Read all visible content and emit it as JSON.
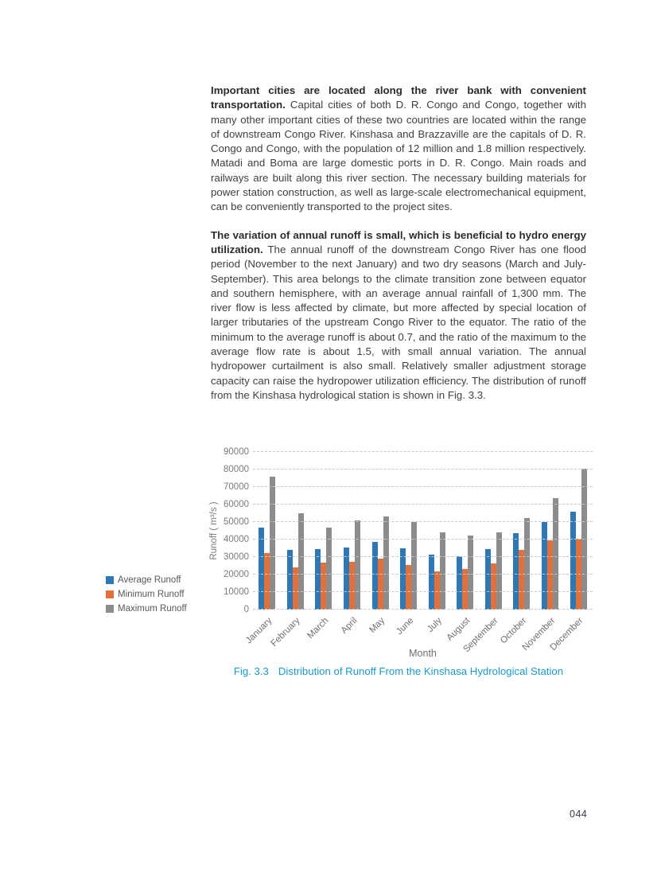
{
  "page": {
    "number": "044"
  },
  "paragraphs": [
    {
      "lead": "Important cities are located along the river bank with convenient transportation.",
      "body": " Capital cities of both D. R. Congo and Congo, together with many other important cities of these two countries are located within the range of downstream Congo River. Kinshasa and Brazzaville are the capitals of D. R. Congo and Congo, with the population of 12 million and 1.8 million respectively. Matadi and Boma are large domestic ports in D. R. Congo. Main roads and railways are built along this river section. The necessary building materials for power station construction, as well as large-scale electromechanical equipment, can be conveniently transported to the project sites."
    },
    {
      "lead": "The variation of annual runoff is small, which is beneficial to hydro energy utilization.",
      "body": " The annual runoff of the downstream Congo River has one flood period (November to the next January) and two dry seasons (March and July-September). This area belongs to the climate transition zone between equator and southern hemisphere, with an average annual rainfall of 1,300 mm. The river flow is less affected by climate, but more affected by special location of larger tributaries of the upstream Congo River to the equator. The ratio of the minimum to the average runoff is about 0.7, and the ratio of the maximum to the average flow rate is about 1.5, with small annual variation. The annual hydropower curtailment is also small. Relatively smaller adjustment storage capacity can raise the hydropower utilization efficiency. The distribution of runoff from the Kinshasa hydrological station is shown in Fig. 3.3."
    }
  ],
  "figure": {
    "caption_label": "Fig. 3.3",
    "caption_text": "Distribution of Runoff From the Kinshasa Hydrological Station",
    "caption_color": "#1a9bc7"
  },
  "chart_data": {
    "type": "bar",
    "title": "",
    "xlabel": "Month",
    "ylabel": "Runoff ( m³/s )",
    "ylim": [
      0,
      90000
    ],
    "ytick_step": 10000,
    "grid": true,
    "gridline_style": "dashed",
    "legend_position": "left",
    "categories": [
      "January",
      "February",
      "March",
      "April",
      "May",
      "June",
      "July",
      "August",
      "September",
      "October",
      "November",
      "December"
    ],
    "series": [
      {
        "name": "Average Runoff",
        "color": "#2e79b5",
        "values": [
          47000,
          34000,
          34500,
          35500,
          38500,
          35000,
          31500,
          30500,
          34500,
          43500,
          50000,
          56000
        ]
      },
      {
        "name": "Minimum Runoff",
        "color": "#e2703a",
        "values": [
          32500,
          24000,
          27000,
          27500,
          29000,
          25500,
          22000,
          23000,
          26500,
          34000,
          39500,
          40500
        ]
      },
      {
        "name": "Maximum Runoff",
        "color": "#8c8c8c",
        "values": [
          76000,
          55000,
          47000,
          51000,
          53000,
          50000,
          44000,
          42500,
          44000,
          52500,
          63500,
          80500
        ]
      }
    ]
  }
}
